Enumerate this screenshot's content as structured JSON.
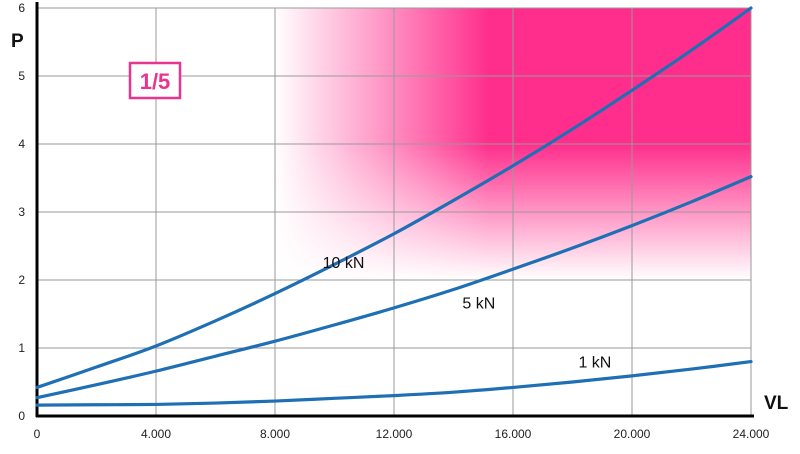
{
  "chart_data": {
    "type": "line",
    "xlabel": "VL",
    "ylabel": "P",
    "xlim": [
      0,
      24000
    ],
    "ylim": [
      0,
      6
    ],
    "x_ticks": [
      "0",
      "4.000",
      "8.000",
      "12.000",
      "16.000",
      "20.000",
      "24.000"
    ],
    "y_ticks": [
      "0",
      "1",
      "2",
      "3",
      "4",
      "5",
      "6"
    ],
    "grid": true,
    "badge": "1/5",
    "highlight_region": {
      "x_start": 8000,
      "x_end": 24000,
      "y_start": 2,
      "y_end": 6,
      "color": "#ff2e8c"
    },
    "series": [
      {
        "name": "10 kN",
        "color": "#1f6fb5",
        "x": [
          0,
          2000,
          4000,
          6000,
          8000,
          10000,
          12000,
          14000,
          16000,
          18000,
          20000,
          22000,
          24000
        ],
        "values": [
          0.42,
          0.72,
          1.03,
          1.4,
          1.8,
          2.23,
          2.68,
          3.17,
          3.68,
          4.22,
          4.79,
          5.38,
          6.0
        ]
      },
      {
        "name": "5 kN",
        "color": "#1f6fb5",
        "x": [
          0,
          2000,
          4000,
          6000,
          8000,
          10000,
          12000,
          14000,
          16000,
          18000,
          20000,
          22000,
          24000
        ],
        "values": [
          0.27,
          0.46,
          0.66,
          0.88,
          1.1,
          1.34,
          1.59,
          1.86,
          2.16,
          2.47,
          2.8,
          3.15,
          3.52
        ]
      },
      {
        "name": "1 kN",
        "color": "#1f6fb5",
        "x": [
          0,
          2000,
          4000,
          6000,
          8000,
          10000,
          12000,
          14000,
          16000,
          18000,
          20000,
          22000,
          24000
        ],
        "values": [
          0.16,
          0.165,
          0.17,
          0.19,
          0.22,
          0.26,
          0.3,
          0.35,
          0.42,
          0.5,
          0.59,
          0.69,
          0.8
        ]
      }
    ]
  }
}
